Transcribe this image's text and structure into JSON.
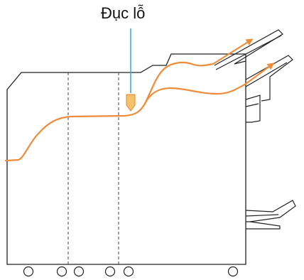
{
  "callout": {
    "label": "Đục lỗ"
  },
  "colors": {
    "outline": "#222222",
    "paper_path": "#ee8c3a",
    "callout_line": "#2ea3d6",
    "punch_marker_fill": "#f7c06c",
    "punch_marker_stroke": "#d98a2b"
  },
  "icons": {
    "punch_marker": "downward-pentagon-marker",
    "paper_arrows": "arrowhead"
  }
}
